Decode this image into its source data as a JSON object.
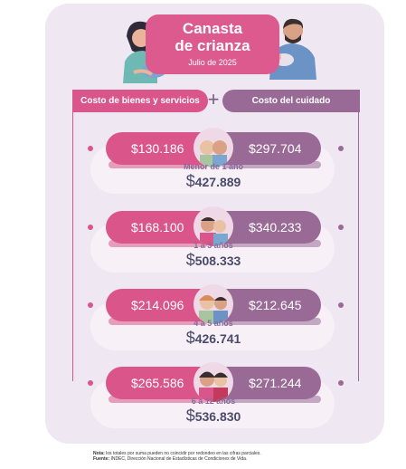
{
  "title": {
    "line1": "Canasta",
    "line2": "de crianza",
    "date": "Julio de 2025"
  },
  "columns": {
    "left": "Costo de bienes y servicios",
    "right": "Costo del cuidado",
    "plus": "+"
  },
  "groups": [
    {
      "goods": "$130.186",
      "care": "$297.704",
      "age": "Menor de 1 año",
      "currency": "$",
      "total": "427.889"
    },
    {
      "goods": "$168.100",
      "care": "$340.233",
      "age": "1 a 3 años",
      "currency": "$",
      "total": "508.333"
    },
    {
      "goods": "$214.096",
      "care": "$212.645",
      "age": "4 a 5 años",
      "currency": "$",
      "total": "426.741"
    },
    {
      "goods": "$265.586",
      "care": "$271.244",
      "age": "6 a 12 años",
      "currency": "$",
      "total": "536.830"
    }
  ],
  "notes": {
    "nota_label": "Nota:",
    "nota_text": " los totales por suma pueden no coincidir por redondeo en las cifras parciales.",
    "fuente_label": "Fuente:",
    "fuente_text": " INDEC, Dirección Nacional de Estadísticas de Condiciones de Vida."
  },
  "colors": {
    "pink": "#d9558a",
    "purple": "#9a6a97",
    "card": "#efe7f1"
  }
}
